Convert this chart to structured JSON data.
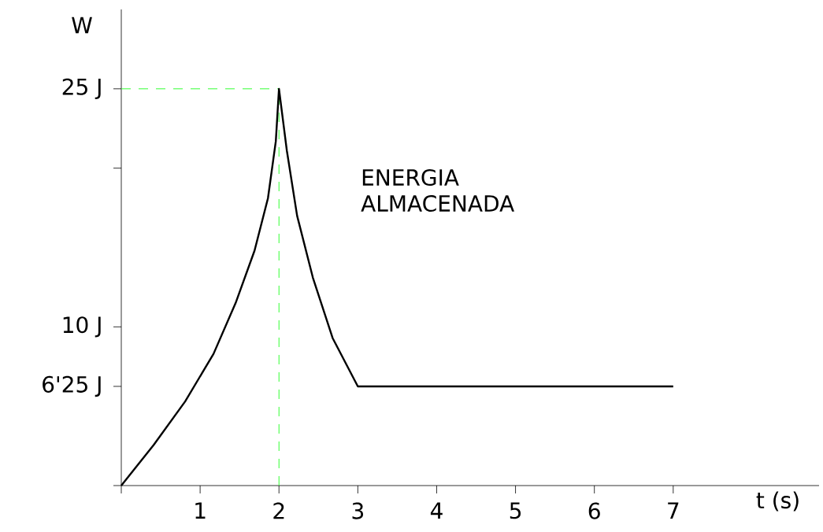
{
  "chart_data": {
    "type": "line",
    "xlabel": "t (s)",
    "ylabel": "W",
    "annotations": [
      "ENERGIA ALMACENADA"
    ],
    "series": [
      {
        "color": "#000000",
        "x": [
          0,
          0.41,
          0.81,
          1.17,
          1.45,
          1.69,
          1.86,
          1.96,
          2,
          2.1,
          2.23,
          2.43,
          2.68,
          3,
          7
        ],
        "values": [
          0,
          2.55,
          5.3,
          8.3,
          11.5,
          14.8,
          18.1,
          21.7,
          25,
          21.1,
          17,
          13.1,
          9.3,
          6.25,
          6.25
        ]
      }
    ],
    "xlim": [
      0,
      8.85
    ],
    "ylim": [
      0,
      30
    ],
    "xticks": [
      {
        "value": 0,
        "label": null
      },
      1,
      2,
      3,
      4,
      5,
      6,
      7
    ],
    "yticks": [
      {
        "value": 0,
        "label": null
      },
      {
        "value": 6.25,
        "label": "6'25 J"
      },
      {
        "value": 10,
        "label": "10 J"
      },
      {
        "value": 20,
        "label": null
      },
      {
        "value": 25,
        "label": "25 J"
      }
    ],
    "ref_lines": [
      {
        "axis": "y",
        "value": 25,
        "color": "#33ff33",
        "line_style": "dashed"
      },
      {
        "axis": "x",
        "value": 2,
        "color": "#33ff33",
        "line_style": "dashed"
      }
    ],
    "marker": "none",
    "line_style": "solid"
  }
}
